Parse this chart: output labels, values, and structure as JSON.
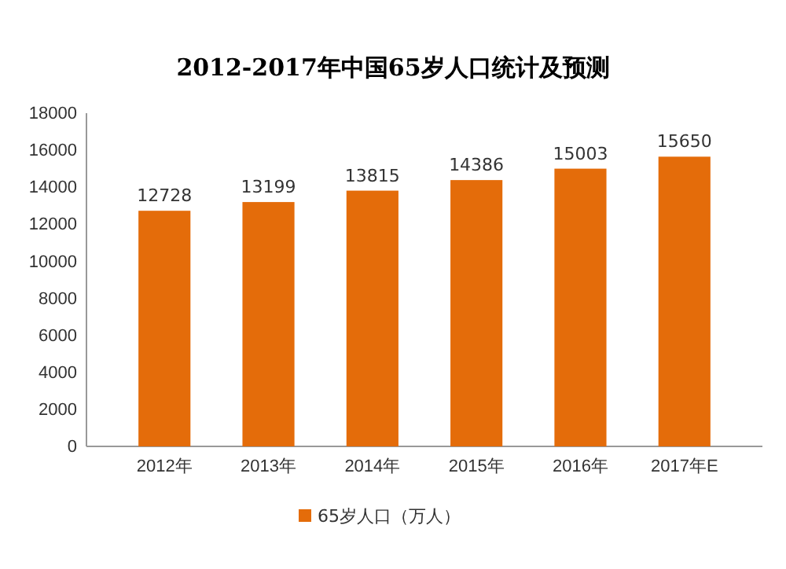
{
  "chart_data": {
    "type": "bar",
    "title": "2012-2017年中国65岁人口统计及预测",
    "categories": [
      "2012年",
      "2013年",
      "2014年",
      "2015年",
      "2016年",
      "2017年E"
    ],
    "series": [
      {
        "name": "65岁人口（万人）",
        "color": "#e46c0a",
        "values": [
          12728,
          13199,
          13815,
          14386,
          15003,
          15650
        ]
      }
    ],
    "ylim": [
      0,
      18000
    ],
    "yticks": [
      0,
      2000,
      4000,
      6000,
      8000,
      10000,
      12000,
      14000,
      16000,
      18000
    ],
    "data_labels": true,
    "legend": "bottom",
    "grid": false
  }
}
